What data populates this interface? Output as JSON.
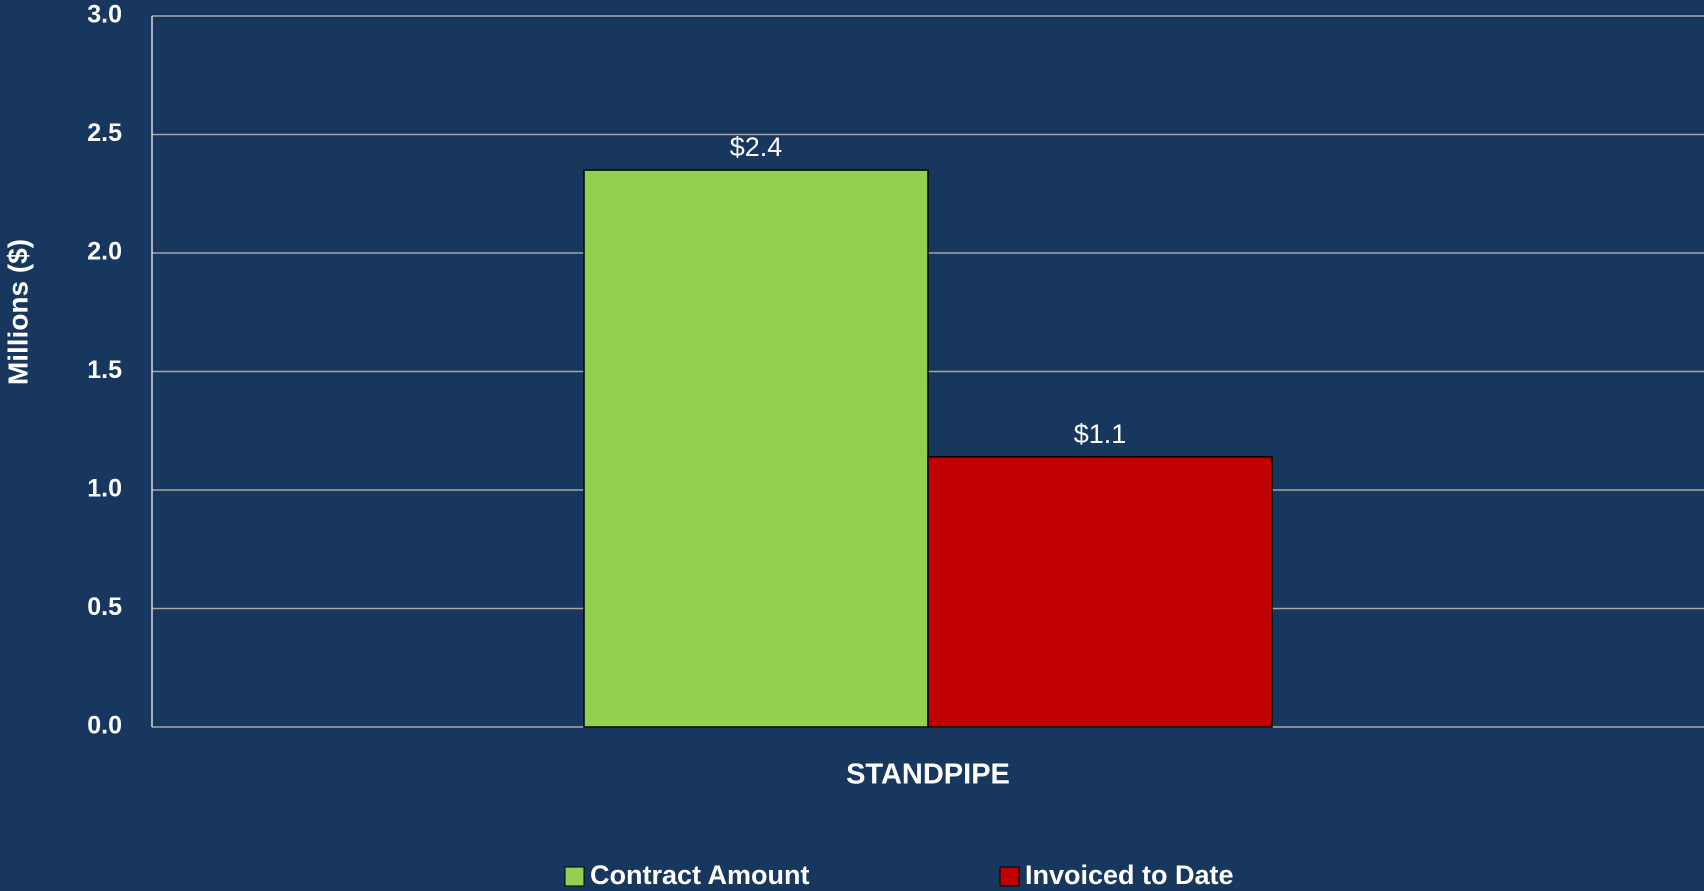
{
  "chart_data": {
    "type": "bar",
    "y_label": "Millions ($)",
    "categories": [
      "STANDPIPE"
    ],
    "series": [
      {
        "name": "Contract Amount",
        "color": "#92d050",
        "values": [
          2.35
        ],
        "value_labels": [
          "$2.4"
        ]
      },
      {
        "name": "Invoiced to Date",
        "color": "#c00000",
        "values": [
          1.14
        ],
        "value_labels": [
          "$1.1"
        ]
      }
    ],
    "ylim": [
      0,
      3
    ],
    "yticks": [
      {
        "value": 0,
        "label": "0.0"
      },
      0.5,
      {
        "value": 1,
        "label": "1.0"
      },
      1.5,
      {
        "value": 2,
        "label": "2.0"
      },
      2.5,
      {
        "value": 3,
        "label": "3.0"
      }
    ],
    "grid": true,
    "legend": "bottom"
  }
}
